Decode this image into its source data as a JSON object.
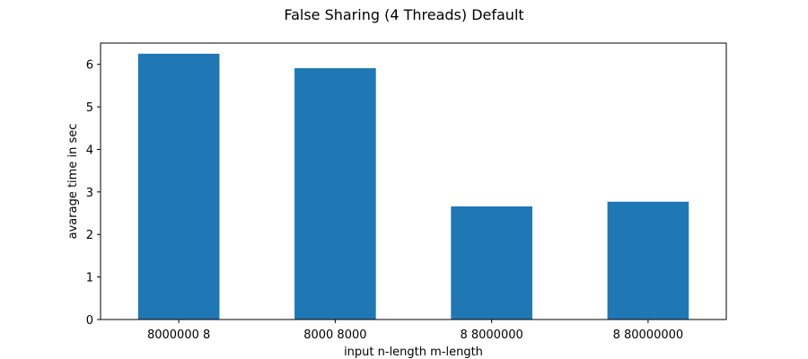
{
  "chart_data": {
    "type": "bar",
    "title": "False Sharing (4 Threads) Default",
    "xlabel": "input n-length m-length",
    "ylabel": "avarage time in sec",
    "categories": [
      "8000000 8",
      "8000 8000",
      "8 8000000",
      "8 80000000"
    ],
    "values": [
      6.25,
      5.91,
      2.66,
      2.77
    ],
    "ylim": [
      0,
      6.5
    ],
    "yticks": [
      0,
      1,
      2,
      3,
      4,
      5,
      6
    ],
    "grid": false,
    "bar_color": "#1f77b4"
  }
}
